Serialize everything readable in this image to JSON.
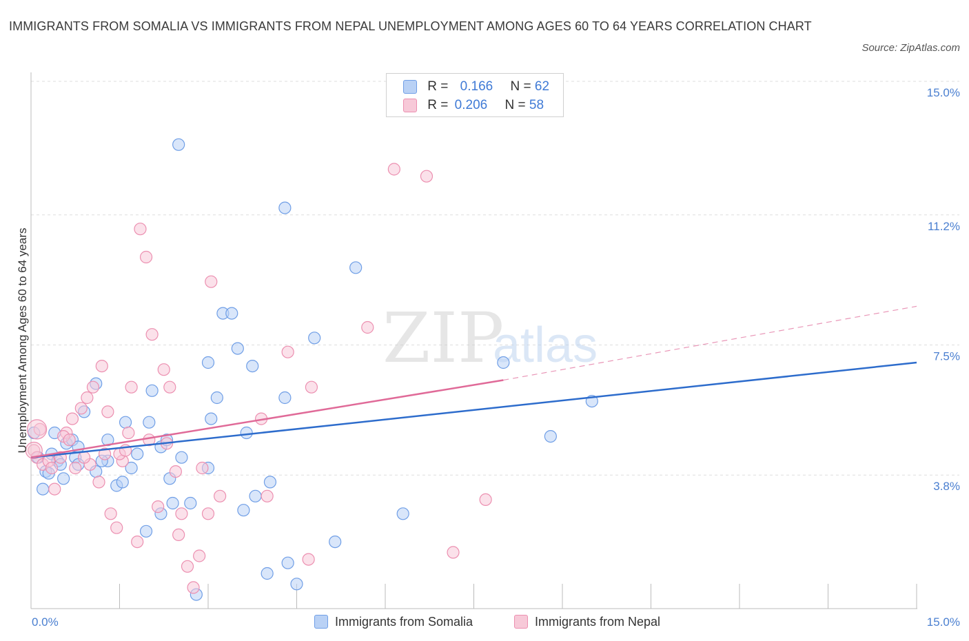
{
  "title": "IMMIGRANTS FROM SOMALIA VS IMMIGRANTS FROM NEPAL UNEMPLOYMENT AMONG AGES 60 TO 64 YEARS CORRELATION CHART",
  "source": "Source: ZipAtlas.com",
  "watermark": {
    "zip": "ZIP",
    "atlas": "atlas"
  },
  "colors": {
    "somalia": "#6f9ee6",
    "somalia_fill": "#b9d1f5",
    "somalia_line": "#2d6ccc",
    "nepal": "#ec8fb0",
    "nepal_fill": "#f7c9d8",
    "nepal_line": "#e06a98",
    "tick_text": "#4a7fd0"
  },
  "legend": {
    "somalia": {
      "r_label": "R =",
      "r_value": "0.166",
      "n_label": "N =",
      "n_value": "62"
    },
    "nepal": {
      "r_label": "R =",
      "r_value": "0.206",
      "n_label": "N =",
      "n_value": "58"
    }
  },
  "chart_data": {
    "type": "scatter",
    "title": "IMMIGRANTS FROM SOMALIA VS IMMIGRANTS FROM NEPAL UNEMPLOYMENT AMONG AGES 60 TO 64 YEARS CORRELATION CHART",
    "xlabel": "",
    "ylabel": "Unemployment Among Ages 60 to 64 years",
    "xlim": [
      0,
      15
    ],
    "ylim": [
      0,
      15
    ],
    "x_tick_labels": [
      "0.0%",
      "15.0%"
    ],
    "y_ticks": [
      {
        "value": 3.8,
        "label": "3.8%"
      },
      {
        "value": 7.5,
        "label": "7.5%"
      },
      {
        "value": 11.2,
        "label": "11.2%"
      },
      {
        "value": 15.0,
        "label": "15.0%"
      }
    ],
    "legend_bottom": [
      "Immigrants from Somalia",
      "Immigrants from Nepal"
    ],
    "series": [
      {
        "name": "Immigrants from Somalia",
        "r": 0.166,
        "n": 62,
        "trend": {
          "x": [
            0,
            15
          ],
          "y": [
            4.3,
            7.0
          ],
          "dashed_extension": false
        },
        "points": [
          [
            0.05,
            5.0
          ],
          [
            0.12,
            4.3
          ],
          [
            0.2,
            3.4
          ],
          [
            0.25,
            3.9
          ],
          [
            0.3,
            3.85
          ],
          [
            0.35,
            4.4
          ],
          [
            0.4,
            5.0
          ],
          [
            0.45,
            4.2
          ],
          [
            0.5,
            4.1
          ],
          [
            0.55,
            3.7
          ],
          [
            0.6,
            4.7
          ],
          [
            0.7,
            4.8
          ],
          [
            0.75,
            4.3
          ],
          [
            0.8,
            4.1
          ],
          [
            0.9,
            5.6
          ],
          [
            1.1,
            3.9
          ],
          [
            1.3,
            4.2
          ],
          [
            1.45,
            3.5
          ],
          [
            1.55,
            3.6
          ],
          [
            1.7,
            4.0
          ],
          [
            1.8,
            4.4
          ],
          [
            1.95,
            2.2
          ],
          [
            2.0,
            5.3
          ],
          [
            2.05,
            6.2
          ],
          [
            2.2,
            2.7
          ],
          [
            2.35,
            3.7
          ],
          [
            2.4,
            3.0
          ],
          [
            2.55,
            4.3
          ],
          [
            2.5,
            13.2
          ],
          [
            2.8,
            0.4
          ],
          [
            3.0,
            7.0
          ],
          [
            3.05,
            5.4
          ],
          [
            3.15,
            6.0
          ],
          [
            3.25,
            8.4
          ],
          [
            3.4,
            8.4
          ],
          [
            3.5,
            7.4
          ],
          [
            3.6,
            2.8
          ],
          [
            3.65,
            5.0
          ],
          [
            3.75,
            6.9
          ],
          [
            3.8,
            3.2
          ],
          [
            4.05,
            3.6
          ],
          [
            4.0,
            1.0
          ],
          [
            4.3,
            11.4
          ],
          [
            4.3,
            6.0
          ],
          [
            4.35,
            1.3
          ],
          [
            4.5,
            0.7
          ],
          [
            4.8,
            7.7
          ],
          [
            5.15,
            1.9
          ],
          [
            5.5,
            9.7
          ],
          [
            6.3,
            2.7
          ],
          [
            8.0,
            7.0
          ],
          [
            8.8,
            4.9
          ],
          [
            9.5,
            5.9
          ],
          [
            1.1,
            6.4
          ],
          [
            1.3,
            4.8
          ],
          [
            1.6,
            5.3
          ],
          [
            2.2,
            4.6
          ],
          [
            2.7,
            3.0
          ],
          [
            3.0,
            4.0
          ],
          [
            1.2,
            4.2
          ],
          [
            0.8,
            4.6
          ],
          [
            2.3,
            4.8
          ]
        ]
      },
      {
        "name": "Immigrants from Nepal",
        "r": 0.206,
        "n": 58,
        "trend": {
          "x": [
            0,
            8.0
          ],
          "y": [
            4.3,
            6.5
          ],
          "dashed_extension": true,
          "dashed_to": [
            15,
            8.6
          ]
        },
        "points": [
          [
            0.05,
            4.5
          ],
          [
            0.1,
            4.3
          ],
          [
            0.2,
            4.1
          ],
          [
            0.3,
            4.2
          ],
          [
            0.4,
            3.4
          ],
          [
            0.5,
            4.3
          ],
          [
            0.6,
            5.0
          ],
          [
            0.7,
            5.4
          ],
          [
            0.75,
            4.0
          ],
          [
            0.85,
            5.7
          ],
          [
            0.95,
            6.0
          ],
          [
            1.05,
            6.3
          ],
          [
            1.15,
            3.6
          ],
          [
            1.2,
            6.9
          ],
          [
            1.3,
            5.6
          ],
          [
            1.35,
            2.7
          ],
          [
            1.45,
            2.3
          ],
          [
            1.55,
            4.2
          ],
          [
            1.65,
            5.0
          ],
          [
            1.7,
            6.3
          ],
          [
            1.8,
            1.9
          ],
          [
            1.85,
            10.8
          ],
          [
            1.95,
            10.0
          ],
          [
            2.05,
            7.8
          ],
          [
            2.15,
            2.9
          ],
          [
            2.25,
            6.8
          ],
          [
            2.35,
            6.3
          ],
          [
            2.45,
            3.9
          ],
          [
            2.5,
            2.1
          ],
          [
            2.55,
            2.7
          ],
          [
            2.65,
            1.2
          ],
          [
            2.75,
            0.6
          ],
          [
            2.85,
            1.5
          ],
          [
            2.9,
            4.0
          ],
          [
            3.0,
            2.7
          ],
          [
            3.05,
            9.3
          ],
          [
            3.2,
            3.2
          ],
          [
            3.9,
            5.4
          ],
          [
            4.0,
            3.2
          ],
          [
            4.35,
            7.3
          ],
          [
            4.7,
            1.4
          ],
          [
            4.75,
            6.3
          ],
          [
            5.7,
            8.0
          ],
          [
            6.15,
            12.5
          ],
          [
            6.7,
            12.3
          ],
          [
            7.15,
            1.6
          ],
          [
            7.7,
            3.1
          ],
          [
            0.15,
            5.1
          ],
          [
            0.55,
            4.9
          ],
          [
            0.65,
            4.8
          ],
          [
            1.0,
            4.1
          ],
          [
            1.5,
            4.4
          ],
          [
            2.0,
            4.8
          ],
          [
            2.3,
            4.7
          ],
          [
            0.9,
            4.3
          ],
          [
            1.25,
            4.4
          ],
          [
            0.35,
            4.0
          ],
          [
            1.6,
            4.5
          ]
        ]
      }
    ]
  }
}
